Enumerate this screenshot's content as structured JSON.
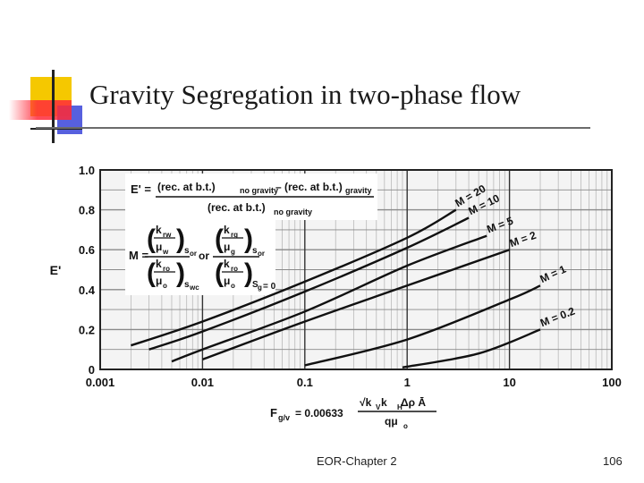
{
  "slide": {
    "title": "Gravity Segregation in two-phase flow",
    "footer_left": "EOR-Chapter 2",
    "page_number": "106",
    "accent_colors": {
      "yellow": "#f5c800",
      "red": "#ff2a3a",
      "blue": "#3a44d8"
    }
  },
  "chart_data": {
    "type": "line",
    "title": "",
    "xlabel_formula": {
      "lhs": "F",
      "lhs_sub": "g/v",
      "eq": "= 0.00633",
      "numerator": "√k",
      "numerator_parts": [
        "√k",
        "V",
        " k",
        "H",
        " Δρ Ā"
      ],
      "denominator": "qμ",
      "denominator_sub": "o"
    },
    "ylabel": "E'",
    "x_scale": "log",
    "xlim": [
      0.001,
      100
    ],
    "ylim": [
      0,
      1.0
    ],
    "x_ticks": [
      "0.001",
      "0.01",
      "0.1",
      "1",
      "10",
      "100"
    ],
    "y_ticks": [
      "0",
      "0.2",
      "0.4",
      "0.6",
      "0.8",
      "1.0"
    ],
    "grid": true,
    "equation_eprime": {
      "lhs": "E' =",
      "num_a": "(rec. at b.t.)",
      "num_a_sub": "no gravity",
      "minus": " – (rec. at b.t.)",
      "num_b_sub": "gravity",
      "den": "(rec. at b.t.)",
      "den_sub": "no gravity"
    },
    "equation_m": {
      "lhs": "M =",
      "or": "or",
      "left_num": "k",
      "left_num_sub": "rw",
      "left_num_den": "μ",
      "left_num_den_sub": "w",
      "left_num_sat": "s",
      "left_num_sat_sub": "or",
      "left_den": "k",
      "left_den_sub": "ro",
      "left_den_den": "μ",
      "left_den_den_sub": "o",
      "left_den_sat": "s",
      "left_den_sat_sub": "wc",
      "right_num": "k",
      "right_num_sub": "rg",
      "right_num_den": "μ",
      "right_num_den_sub": "g",
      "right_num_sat": "s",
      "right_num_sat_sub": "or",
      "right_den": "k",
      "right_den_sub": "ro",
      "right_den_den": "μ",
      "right_den_den_sub": "o",
      "right_den_sat": "S",
      "right_den_sat_sub": "g",
      "right_den_sat_val": " = 0"
    },
    "series": [
      {
        "name": "M = 20",
        "x": [
          0.002,
          0.01,
          0.1,
          1,
          3
        ],
        "y": [
          0.12,
          0.24,
          0.44,
          0.66,
          0.8
        ]
      },
      {
        "name": "M = 10",
        "x": [
          0.003,
          0.01,
          0.1,
          1,
          4
        ],
        "y": [
          0.1,
          0.19,
          0.39,
          0.61,
          0.76
        ]
      },
      {
        "name": "M = 5",
        "x": [
          0.005,
          0.01,
          0.1,
          1,
          6
        ],
        "y": [
          0.04,
          0.1,
          0.29,
          0.52,
          0.67
        ]
      },
      {
        "name": "M = 2",
        "x": [
          0.01,
          0.1,
          1,
          10
        ],
        "y": [
          0.05,
          0.24,
          0.42,
          0.6
        ]
      },
      {
        "name": "M = 1",
        "x": [
          0.1,
          1,
          10,
          20
        ],
        "y": [
          0.02,
          0.15,
          0.35,
          0.42
        ]
      },
      {
        "name": "M = 0.2",
        "x": [
          0.9,
          5,
          20
        ],
        "y": [
          0.01,
          0.08,
          0.2
        ]
      }
    ]
  }
}
